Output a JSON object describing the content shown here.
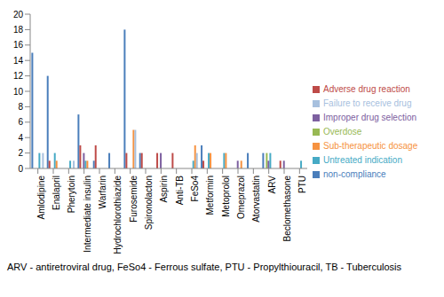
{
  "chart_data": {
    "type": "bar",
    "categories": [
      "Amlodipine",
      "Enalapril",
      "Pherytoin",
      "Intermediate insulin",
      "Warfarin",
      "Hydrochlorothiazide",
      "Furosemide",
      "Spironolacton",
      "Aspirin",
      "Anti-TB",
      "FeSo4",
      "Metformin",
      "Metoprolol",
      "Omeprazol",
      "Atorvastatin",
      "ARV",
      "Beclomethasone",
      "PTU"
    ],
    "series": [
      {
        "name": "non-compliance",
        "color": "#4a7ebb",
        "values": [
          15,
          12,
          0,
          7,
          1,
          2,
          18,
          2,
          0,
          0,
          0,
          3,
          0,
          0,
          2,
          2,
          0,
          0
        ]
      },
      {
        "name": "Adverse drug reaction",
        "color": "#be4b48",
        "values": [
          0,
          1,
          0,
          3,
          3,
          0,
          2,
          2,
          2,
          2,
          0,
          1,
          0,
          0,
          0,
          0,
          1,
          0
        ]
      },
      {
        "name": "Overdose",
        "color": "#98b954",
        "values": [
          0,
          0,
          0,
          0,
          0,
          0,
          0,
          0,
          0,
          0,
          0,
          0,
          0,
          0,
          0,
          2,
          0,
          0
        ]
      },
      {
        "name": "Improper drug selection",
        "color": "#7d60a0",
        "values": [
          0,
          0,
          0,
          2,
          0,
          0,
          0,
          0,
          2,
          0,
          0,
          0,
          0,
          1,
          0,
          1,
          1,
          0
        ]
      },
      {
        "name": "Untreated indication",
        "color": "#46aac5",
        "values": [
          2,
          2,
          1,
          1,
          0,
          0,
          0,
          0,
          0,
          0,
          1,
          2,
          2,
          0,
          0,
          2,
          0,
          1
        ]
      },
      {
        "name": "Sub-therapeutic dosage",
        "color": "#f69240",
        "values": [
          0,
          1,
          0,
          1,
          0,
          0,
          5,
          0,
          0,
          0,
          3,
          2,
          2,
          1,
          0,
          0,
          0,
          0
        ]
      },
      {
        "name": "Failure to receive drug",
        "color": "#a7c0de",
        "values": [
          2,
          0,
          1,
          0,
          0,
          0,
          5,
          0,
          0,
          0,
          2,
          0,
          0,
          0,
          0,
          0,
          0,
          0
        ]
      }
    ],
    "ylim": [
      0,
      20
    ],
    "yticks": [
      0,
      2,
      4,
      6,
      8,
      10,
      12,
      14,
      16,
      18,
      20
    ],
    "grid": false,
    "legend": "right",
    "caption": "ARV - antiretroviral drug, FeSo4 - Ferrous sulfate, PTU - Propylthiouracil, TB - Tuberculosis"
  }
}
